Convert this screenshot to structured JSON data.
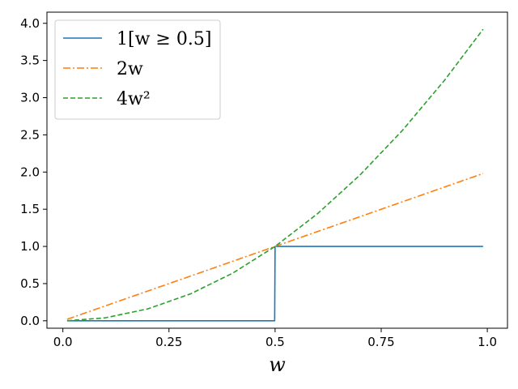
{
  "chart_data": {
    "type": "line",
    "title": "",
    "xlabel": "w",
    "ylabel": "",
    "xlim": [
      -0.0375,
      1.0475
    ],
    "ylim": [
      -0.1,
      4.15
    ],
    "xticks": [
      0.0,
      0.25,
      0.5,
      0.75,
      1.0
    ],
    "xtick_labels": [
      "0.0",
      "0.25",
      "0.5",
      "0.75",
      "1.0"
    ],
    "yticks": [
      0.0,
      0.5,
      1.0,
      1.5,
      2.0,
      2.5,
      3.0,
      3.5,
      4.0
    ],
    "ytick_labels": [
      "0.0",
      "0.5",
      "1.0",
      "1.5",
      "2.0",
      "2.5",
      "3.0",
      "3.5",
      "4.0"
    ],
    "grid": false,
    "legend_position": "top-left",
    "series": [
      {
        "name": "1[w ≥ 0.5]",
        "style": "solid",
        "color": "#1f77b4",
        "x": [
          0.01,
          0.499,
          0.5,
          0.99
        ],
        "y": [
          0,
          0,
          1,
          1
        ]
      },
      {
        "name": "2w",
        "style": "dashdot",
        "color": "#ff7f0e",
        "x": [
          0.01,
          0.99
        ],
        "y": [
          0.02,
          1.98
        ]
      },
      {
        "name": "4w²",
        "style": "dashed",
        "color": "#2ca02c",
        "x": [
          0.01,
          0.1,
          0.2,
          0.3,
          0.4,
          0.5,
          0.6,
          0.7,
          0.8,
          0.9,
          0.99
        ],
        "y": [
          0.0004,
          0.04,
          0.16,
          0.36,
          0.64,
          1.0,
          1.44,
          1.96,
          2.56,
          3.24,
          3.92
        ]
      }
    ]
  }
}
